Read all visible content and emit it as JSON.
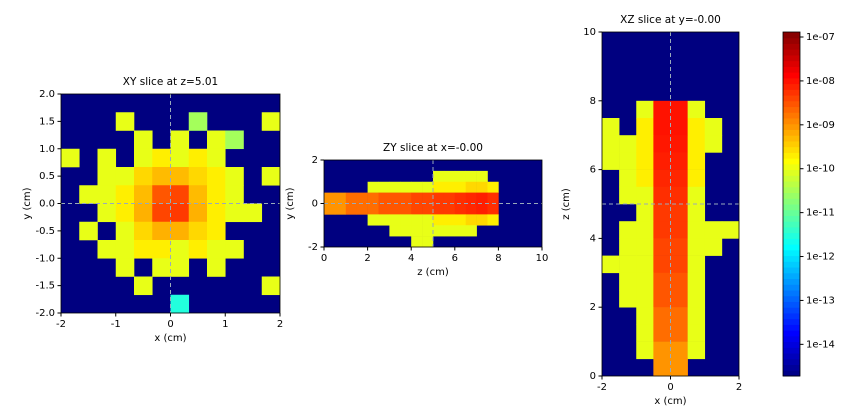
{
  "chart_data": [
    {
      "type": "heatmap",
      "title": "XY slice at z=5.01",
      "xlabel": "x (cm)",
      "ylabel": "y (cm)",
      "xlim": [
        -2,
        2
      ],
      "ylim": [
        -2,
        2
      ],
      "xticks": [
        -2,
        -1,
        0,
        1,
        2
      ],
      "yticks": [
        {
          "value": 2,
          "label": "2.0"
        },
        1.5,
        {
          "value": 1,
          "label": "1.0"
        },
        0.5,
        {
          "value": 0,
          "label": "0.0"
        },
        -0.5,
        {
          "value": -1,
          "label": "-1.0"
        },
        -1.5,
        {
          "value": -2,
          "label": "-2.0"
        }
      ],
      "crosshair": [
        0,
        0
      ],
      "z": [
        [
          null,
          null,
          null,
          null,
          null,
          null,
          null,
          null,
          null,
          null,
          null,
          null
        ],
        [
          null,
          null,
          null,
          1e-10,
          null,
          null,
          null,
          3e-11,
          null,
          null,
          null,
          1e-10
        ],
        [
          null,
          null,
          null,
          null,
          1e-10,
          null,
          1e-10,
          null,
          1e-10,
          3e-11,
          null,
          null
        ],
        [
          1e-10,
          null,
          1e-10,
          null,
          1e-10,
          2e-10,
          1e-10,
          2e-10,
          1e-10,
          null,
          null,
          null
        ],
        [
          null,
          null,
          1e-10,
          1e-10,
          3e-10,
          5e-10,
          5e-10,
          3e-10,
          2e-10,
          1e-10,
          null,
          1e-10
        ],
        [
          null,
          1e-10,
          1e-10,
          2e-10,
          5e-10,
          3e-09,
          4e-09,
          5e-10,
          2e-10,
          1e-10,
          null,
          null
        ],
        [
          null,
          null,
          1e-10,
          2e-10,
          6e-10,
          4e-09,
          5e-09,
          6e-10,
          2e-10,
          1e-10,
          1e-10,
          null
        ],
        [
          null,
          1e-10,
          null,
          1e-10,
          3e-10,
          6e-10,
          6e-10,
          3e-10,
          2e-10,
          null,
          null,
          null
        ],
        [
          null,
          null,
          1e-10,
          1e-10,
          2e-10,
          2e-10,
          1e-10,
          2e-10,
          1e-10,
          1e-10,
          null,
          null
        ],
        [
          null,
          null,
          null,
          1e-10,
          null,
          1e-10,
          1e-10,
          null,
          1e-10,
          null,
          null,
          null
        ],
        [
          null,
          null,
          null,
          null,
          1e-10,
          null,
          null,
          null,
          null,
          null,
          null,
          1e-10
        ],
        [
          null,
          null,
          null,
          null,
          null,
          null,
          3e-12,
          null,
          null,
          null,
          null,
          null
        ]
      ]
    },
    {
      "type": "heatmap",
      "title": "ZY slice at x=-0.00",
      "xlabel": "z (cm)",
      "ylabel": "y (cm)",
      "xlim": [
        0,
        10
      ],
      "ylim": [
        -2,
        2
      ],
      "xticks": [
        0,
        2,
        4,
        6,
        8,
        10
      ],
      "yticks": [
        -2,
        0,
        2
      ],
      "crosshair": [
        5,
        0
      ],
      "z": [
        [
          null,
          null,
          null,
          null,
          null,
          null,
          null,
          null,
          null,
          null,
          null,
          null,
          null,
          null,
          null,
          null,
          null,
          null,
          null,
          null
        ],
        [
          null,
          null,
          null,
          null,
          null,
          null,
          null,
          null,
          null,
          null,
          1e-10,
          1e-10,
          1e-10,
          1e-10,
          1e-10,
          null,
          null,
          null,
          null,
          null
        ],
        [
          null,
          null,
          null,
          null,
          1e-10,
          1e-10,
          1e-10,
          1e-10,
          1e-10,
          1e-10,
          2e-10,
          2e-10,
          2e-10,
          3e-10,
          3e-10,
          2e-10,
          null,
          null,
          null,
          null
        ],
        [
          1e-09,
          1e-09,
          2e-09,
          2e-09,
          2e-09,
          3e-09,
          3e-09,
          3e-09,
          4e-09,
          4e-09,
          5e-09,
          5e-09,
          6e-09,
          7e-09,
          8e-09,
          6e-09,
          null,
          null,
          null,
          null
        ],
        [
          1e-09,
          1e-09,
          2e-09,
          2e-09,
          2e-09,
          3e-09,
          3e-09,
          3e-09,
          4e-09,
          4e-09,
          5e-09,
          5e-09,
          6e-09,
          7e-09,
          8e-09,
          6e-09,
          null,
          null,
          null,
          null
        ],
        [
          null,
          null,
          null,
          null,
          1e-10,
          1e-10,
          1e-10,
          1e-10,
          1e-10,
          1e-10,
          2e-10,
          2e-10,
          2e-10,
          3e-10,
          3e-10,
          2e-10,
          null,
          null,
          null,
          null
        ],
        [
          null,
          null,
          null,
          null,
          null,
          null,
          1e-10,
          1e-10,
          1e-10,
          1e-10,
          1e-10,
          1e-10,
          1e-10,
          1e-10,
          null,
          null,
          null,
          null,
          null,
          null
        ],
        [
          null,
          null,
          null,
          null,
          null,
          null,
          null,
          null,
          1e-10,
          1e-10,
          null,
          null,
          null,
          null,
          null,
          null,
          null,
          null,
          null,
          null
        ]
      ]
    },
    {
      "type": "heatmap",
      "title": "XZ slice at y=-0.00",
      "xlabel": "x (cm)",
      "ylabel": "z (cm)",
      "xlim": [
        -2,
        2
      ],
      "ylim": [
        0,
        10
      ],
      "xticks": [
        -2,
        0,
        2
      ],
      "yticks": [
        0,
        2,
        4,
        6,
        8,
        10
      ],
      "crosshair": [
        0,
        5
      ],
      "z": [
        [
          null,
          null,
          null,
          null,
          null,
          null,
          null,
          null
        ],
        [
          null,
          null,
          null,
          null,
          null,
          null,
          null,
          null
        ],
        [
          null,
          null,
          null,
          null,
          null,
          null,
          null,
          null
        ],
        [
          null,
          null,
          null,
          null,
          null,
          null,
          null,
          null
        ],
        [
          null,
          null,
          1e-10,
          1e-08,
          1e-08,
          1e-10,
          null,
          null
        ],
        [
          1e-10,
          null,
          2e-10,
          1e-08,
          1e-08,
          2e-10,
          1e-10,
          null
        ],
        [
          1e-10,
          1e-10,
          2e-10,
          9e-09,
          9e-09,
          2e-10,
          1e-10,
          null
        ],
        [
          1e-10,
          1e-10,
          2e-10,
          8e-09,
          8e-09,
          2e-10,
          null,
          null
        ],
        [
          null,
          1e-10,
          2e-10,
          7e-09,
          7e-09,
          2e-10,
          null,
          null
        ],
        [
          null,
          1e-10,
          1e-10,
          6e-09,
          6e-09,
          1e-10,
          null,
          null
        ],
        [
          null,
          null,
          1e-10,
          5e-09,
          5e-09,
          1e-10,
          null,
          null
        ],
        [
          null,
          1e-10,
          1e-10,
          5e-09,
          5e-09,
          1e-10,
          1e-10,
          1e-10
        ],
        [
          null,
          1e-10,
          1e-10,
          4e-09,
          4e-09,
          1e-10,
          1e-10,
          null
        ],
        [
          1e-10,
          1e-10,
          1e-10,
          4e-09,
          4e-09,
          1e-10,
          null,
          null
        ],
        [
          null,
          1e-10,
          1e-10,
          3e-09,
          3e-09,
          1e-10,
          null,
          null
        ],
        [
          null,
          1e-10,
          1e-10,
          3e-09,
          3e-09,
          1e-10,
          null,
          null
        ],
        [
          null,
          null,
          1e-10,
          2e-09,
          2e-09,
          1e-10,
          null,
          null
        ],
        [
          null,
          null,
          1e-10,
          2e-09,
          2e-09,
          1e-10,
          null,
          null
        ],
        [
          null,
          null,
          1e-10,
          1e-09,
          1e-09,
          1e-10,
          null,
          null
        ],
        [
          null,
          null,
          null,
          1e-09,
          1e-09,
          null,
          null,
          null
        ]
      ]
    },
    {
      "type": "colorbar",
      "colormap": "jet",
      "log": true,
      "clim": [
        1.9e-15,
        1.3e-07
      ],
      "ticks": [
        {
          "value": 1e-14,
          "label": "1e-14"
        },
        {
          "value": 1e-13,
          "label": "1e-13"
        },
        {
          "value": 1e-12,
          "label": "1e-12"
        },
        {
          "value": 1e-11,
          "label": "1e-11"
        },
        {
          "value": 1e-10,
          "label": "1e-10"
        },
        {
          "value": 1e-09,
          "label": "1e-09"
        },
        {
          "value": 1e-08,
          "label": "1e-08"
        },
        {
          "value": 1e-07,
          "label": "1e-07"
        }
      ]
    }
  ]
}
